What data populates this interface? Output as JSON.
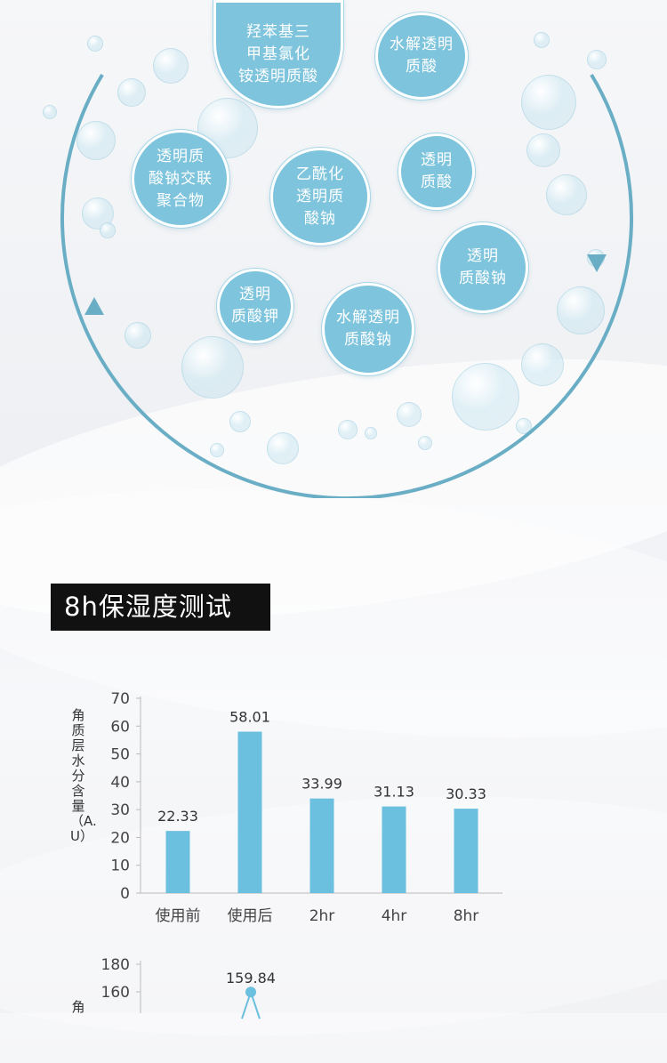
{
  "ingredients": [
    "羟苯基三\n甲基氯化\n铵透明质酸",
    "水解透明\n质酸",
    "透明质\n酸钠交联\n聚合物",
    "乙酰化\n透明质\n酸钠",
    "透明\n质酸",
    "透明\n质酸钠",
    "透明\n质酸钾",
    "水解透明\n质酸钠"
  ],
  "section_title": "8h保湿度测试",
  "colors": {
    "bar": "#6bbfdf",
    "circle": "#6aaec6",
    "node": "#7ec4dc"
  },
  "chart_data": [
    {
      "type": "bar",
      "categories": [
        "使用前",
        "使用后",
        "2hr",
        "4hr",
        "8hr"
      ],
      "values": [
        22.33,
        58.01,
        33.99,
        31.13,
        30.33
      ],
      "ylabel": "角质层水分含量（A.U）",
      "ylim": [
        0,
        70
      ],
      "yticks": [
        0,
        10,
        20,
        30,
        40,
        50,
        60,
        70
      ],
      "data_labels": true
    },
    {
      "type": "line",
      "ylabel": "角",
      "yticks": [
        160,
        180
      ],
      "visible_points": [
        159.84
      ],
      "partial": true
    }
  ]
}
